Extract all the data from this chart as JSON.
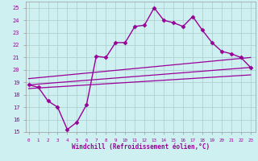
{
  "title": "",
  "xlabel": "Windchill (Refroidissement éolien,°C)",
  "background_color": "#cff0f0",
  "grid_color": "#aacccc",
  "line_color": "#990099",
  "x_ticks": [
    0,
    1,
    2,
    3,
    4,
    5,
    6,
    7,
    8,
    9,
    10,
    11,
    12,
    13,
    14,
    15,
    16,
    17,
    18,
    19,
    20,
    21,
    22,
    23
  ],
  "y_ticks": [
    15,
    16,
    17,
    18,
    19,
    20,
    21,
    22,
    23,
    24,
    25
  ],
  "xlim": [
    -0.3,
    23.5
  ],
  "ylim": [
    15,
    25.5
  ],
  "series": [
    {
      "x": [
        0,
        1,
        2,
        3,
        4,
        5,
        6,
        7,
        8,
        9,
        10,
        11,
        12,
        13,
        14,
        15,
        16,
        17,
        18,
        19,
        20,
        21,
        22,
        23
      ],
      "y": [
        18.8,
        18.6,
        17.5,
        17.0,
        15.2,
        15.8,
        17.2,
        21.1,
        21.0,
        22.2,
        22.2,
        23.5,
        23.6,
        25.0,
        24.0,
        23.8,
        23.5,
        24.3,
        23.2,
        22.2,
        21.5,
        21.3,
        21.0,
        20.2
      ],
      "marker": "D",
      "markersize": 2.5,
      "linewidth": 1.0
    },
    {
      "x": [
        0,
        23
      ],
      "y": [
        18.8,
        20.2
      ],
      "linewidth": 0.9
    },
    {
      "x": [
        0,
        23
      ],
      "y": [
        19.3,
        21.0
      ],
      "linewidth": 0.9
    },
    {
      "x": [
        0,
        23
      ],
      "y": [
        18.5,
        19.6
      ],
      "linewidth": 0.9
    }
  ]
}
